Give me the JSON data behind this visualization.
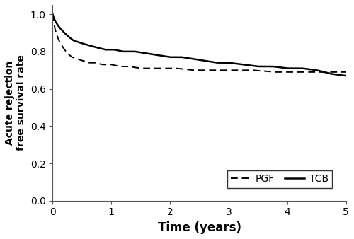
{
  "title": "",
  "xlabel": "Time (years)",
  "ylabel": "Acute rejection\nfree survival rate",
  "xlim": [
    0,
    5
  ],
  "ylim": [
    0.0,
    1.05
  ],
  "xticks": [
    0,
    1,
    2,
    3,
    4,
    5
  ],
  "yticks": [
    0.0,
    0.2,
    0.4,
    0.6,
    0.8,
    1.0
  ],
  "background_color": "#ffffff",
  "pgf_x": [
    0.0,
    0.04,
    0.08,
    0.12,
    0.18,
    0.25,
    0.33,
    0.42,
    0.52,
    0.62,
    0.72,
    0.85,
    1.0,
    1.15,
    1.3,
    1.5,
    1.7,
    1.9,
    2.1,
    2.4,
    2.7,
    3.0,
    3.4,
    3.8,
    4.2,
    4.6,
    5.0
  ],
  "pgf_y": [
    1.0,
    0.92,
    0.88,
    0.85,
    0.82,
    0.79,
    0.77,
    0.76,
    0.75,
    0.74,
    0.74,
    0.73,
    0.73,
    0.72,
    0.72,
    0.71,
    0.71,
    0.71,
    0.71,
    0.7,
    0.7,
    0.7,
    0.7,
    0.69,
    0.69,
    0.69,
    0.69
  ],
  "tcb_x": [
    0.0,
    0.02,
    0.05,
    0.09,
    0.14,
    0.2,
    0.27,
    0.35,
    0.44,
    0.54,
    0.65,
    0.77,
    0.9,
    1.05,
    1.2,
    1.4,
    1.6,
    1.8,
    2.0,
    2.2,
    2.4,
    2.6,
    2.8,
    3.0,
    3.25,
    3.5,
    3.75,
    4.0,
    4.25,
    4.5,
    4.75,
    5.0
  ],
  "tcb_y": [
    1.0,
    0.98,
    0.96,
    0.94,
    0.92,
    0.9,
    0.88,
    0.86,
    0.85,
    0.84,
    0.83,
    0.82,
    0.81,
    0.81,
    0.8,
    0.8,
    0.79,
    0.78,
    0.77,
    0.77,
    0.76,
    0.75,
    0.74,
    0.74,
    0.73,
    0.72,
    0.72,
    0.71,
    0.71,
    0.7,
    0.68,
    0.67
  ],
  "pgf_color": "#000000",
  "tcb_color": "#000000",
  "pgf_linestyle": "--",
  "tcb_linestyle": "-",
  "pgf_linewidth": 1.4,
  "tcb_linewidth": 1.8,
  "xlabel_fontsize": 12,
  "ylabel_fontsize": 10,
  "tick_fontsize": 10,
  "legend_fontsize": 10
}
